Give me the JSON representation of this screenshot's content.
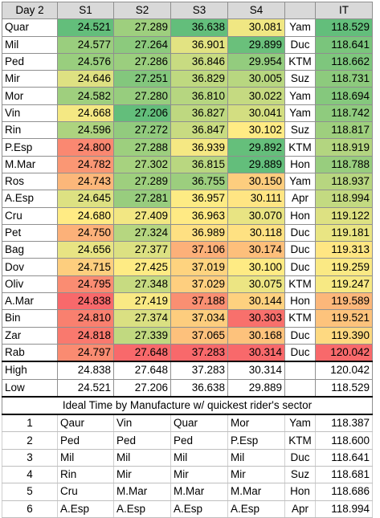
{
  "headers": [
    "Day 2",
    "S1",
    "S2",
    "S3",
    "S4",
    "",
    "IT"
  ],
  "riders": [
    {
      "name": "Quar",
      "s": [
        24.521,
        27.289,
        36.638,
        30.081
      ],
      "mfr": "Yam",
      "it": 118.529
    },
    {
      "name": "Mil",
      "s": [
        24.577,
        27.264,
        36.901,
        29.899
      ],
      "mfr": "Duc",
      "it": 118.641
    },
    {
      "name": "Ped",
      "s": [
        24.576,
        27.286,
        36.846,
        29.954
      ],
      "mfr": "KTM",
      "it": 118.662
    },
    {
      "name": "Mir",
      "s": [
        24.646,
        27.251,
        36.829,
        30.005
      ],
      "mfr": "Suz",
      "it": 118.731
    },
    {
      "name": "Mor",
      "s": [
        24.582,
        27.28,
        36.81,
        30.022
      ],
      "mfr": "Yam",
      "it": 118.694
    },
    {
      "name": "Vin",
      "s": [
        24.668,
        27.206,
        36.827,
        30.041
      ],
      "mfr": "Yam",
      "it": 118.742
    },
    {
      "name": "Rin",
      "s": [
        24.596,
        27.272,
        36.847,
        30.102
      ],
      "mfr": "Suz",
      "it": 118.817
    },
    {
      "name": "P.Esp",
      "s": [
        24.8,
        27.288,
        36.939,
        29.892
      ],
      "mfr": "KTM",
      "it": 118.919
    },
    {
      "name": "M.Mar",
      "s": [
        24.782,
        27.302,
        36.815,
        29.889
      ],
      "mfr": "Hon",
      "it": 118.788
    },
    {
      "name": "Ros",
      "s": [
        24.743,
        27.289,
        36.755,
        30.15
      ],
      "mfr": "Yam",
      "it": 118.937
    },
    {
      "name": "A.Esp",
      "s": [
        24.645,
        27.281,
        36.957,
        30.111
      ],
      "mfr": "Apr",
      "it": 118.994
    },
    {
      "name": "Cru",
      "s": [
        24.68,
        27.409,
        36.963,
        30.07
      ],
      "mfr": "Hon",
      "it": 119.122
    },
    {
      "name": "Pet",
      "s": [
        24.75,
        27.324,
        36.989,
        30.118
      ],
      "mfr": "Duc",
      "it": 119.181
    },
    {
      "name": "Bag",
      "s": [
        24.656,
        27.377,
        37.106,
        30.174
      ],
      "mfr": "Duc",
      "it": 119.313
    },
    {
      "name": "Dov",
      "s": [
        24.715,
        27.425,
        37.019,
        30.1
      ],
      "mfr": "Duc",
      "it": 119.259
    },
    {
      "name": "Oliv",
      "s": [
        24.795,
        27.348,
        37.029,
        30.075
      ],
      "mfr": "KTM",
      "it": 119.247
    },
    {
      "name": "A.Mar",
      "s": [
        24.838,
        27.419,
        37.188,
        30.144
      ],
      "mfr": "Hon",
      "it": 119.589
    },
    {
      "name": "Bin",
      "s": [
        24.81,
        27.374,
        37.034,
        30.303
      ],
      "mfr": "KTM",
      "it": 119.521
    },
    {
      "name": "Zar",
      "s": [
        24.818,
        27.339,
        37.065,
        30.168
      ],
      "mfr": "Duc",
      "it": 119.39
    },
    {
      "name": "Rab",
      "s": [
        24.797,
        27.648,
        37.283,
        30.314
      ],
      "mfr": "Duc",
      "it": 120.042
    }
  ],
  "summary": [
    {
      "label": "High",
      "s": [
        24.838,
        27.648,
        37.283,
        30.314
      ],
      "it": 120.042
    },
    {
      "label": "Low",
      "s": [
        24.521,
        27.206,
        36.638,
        29.889
      ],
      "it": 118.529
    }
  ],
  "ideal_title": "Ideal Time by Manufacture w/ quickest rider's sector",
  "ideal": [
    {
      "rank": "1",
      "r": [
        "Qaur",
        "Vin",
        "Quar",
        "Mor"
      ],
      "mfr": "Yam",
      "it": "118.387"
    },
    {
      "rank": "2",
      "r": [
        "Ped",
        "Ped",
        "Ped",
        "P.Esp"
      ],
      "mfr": "KTM",
      "it": "118.600"
    },
    {
      "rank": "3",
      "r": [
        "Mil",
        "Mil",
        "Mil",
        "Mil"
      ],
      "mfr": "Duc",
      "it": "118.641"
    },
    {
      "rank": "4",
      "r": [
        "Rin",
        "Mir",
        "Mir",
        "Mir"
      ],
      "mfr": "Suz",
      "it": "118.681"
    },
    {
      "rank": "5",
      "r": [
        "Cru",
        "M.Mar",
        "M.Mar",
        "M.Mar"
      ],
      "mfr": "Hon",
      "it": "118.686"
    },
    {
      "rank": "6",
      "r": [
        "A.Esp",
        "A.Esp",
        "A.Esp",
        "A.Esp"
      ],
      "mfr": "Apr",
      "it": "118.994"
    }
  ],
  "colors": {
    "low": "#63be7b",
    "mid": "#ffeb84",
    "high": "#f8696b",
    "header": "#d9d9d9"
  }
}
